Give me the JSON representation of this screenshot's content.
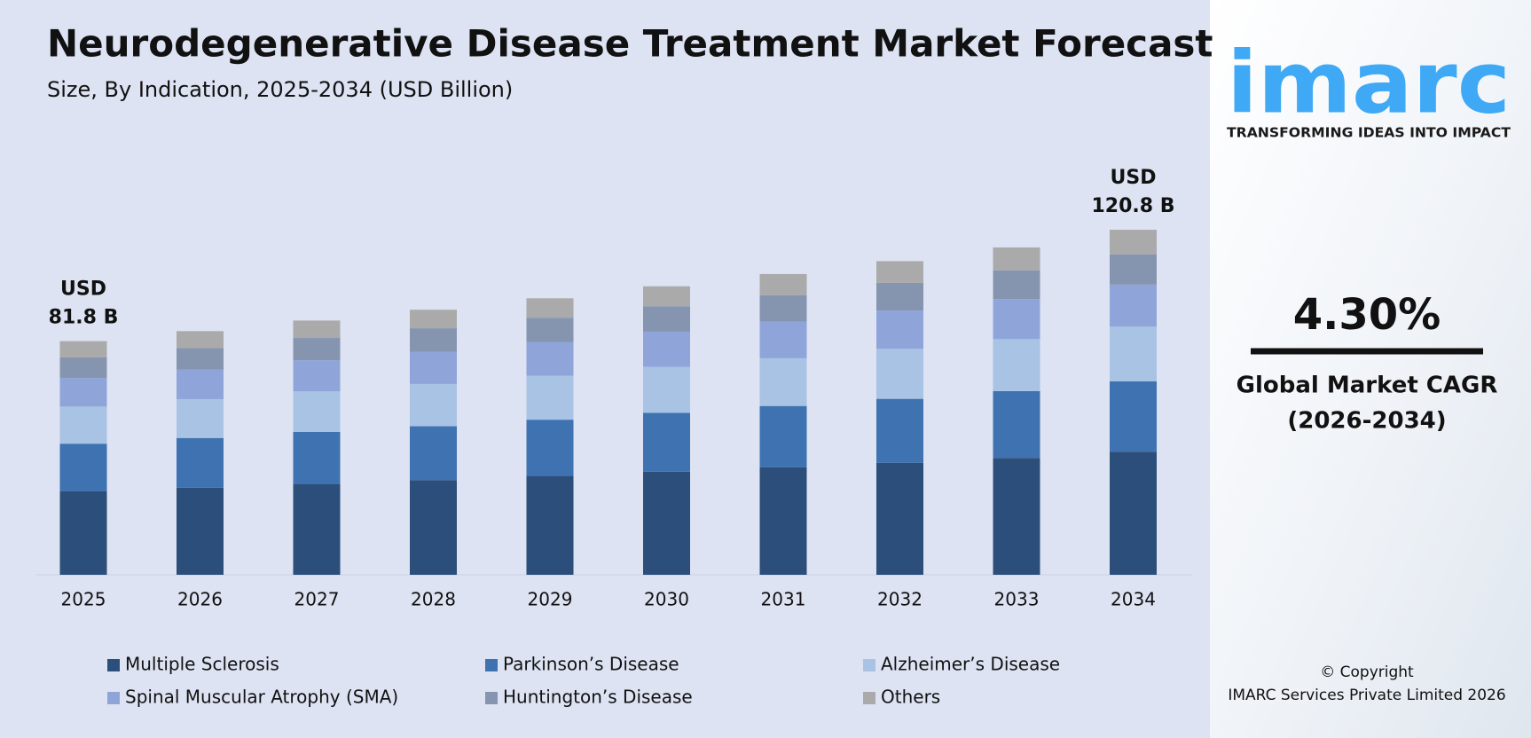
{
  "chart_data": {
    "type": "stacked_bar",
    "title": "Neurodegenerative Disease Treatment Market Forecast",
    "subtitle": "Size, By Indication, 2025-2034 (USD Billion)",
    "categories": [
      "2025",
      "2026",
      "2027",
      "2028",
      "2029",
      "2030",
      "2031",
      "2032",
      "2033",
      "2034"
    ],
    "series": [
      {
        "name": "Multiple Sclerosis",
        "color": "#2c4e7a",
        "values": [
          29.2,
          30.5,
          31.8,
          33.1,
          34.6,
          36.1,
          37.6,
          39.2,
          40.9,
          43.1
        ]
      },
      {
        "name": "Parkinson’s Disease",
        "color": "#3f72b0",
        "values": [
          16.7,
          17.4,
          18.2,
          18.9,
          19.7,
          20.6,
          21.5,
          22.4,
          23.4,
          24.6
        ]
      },
      {
        "name": "Alzheimer’s Disease",
        "color": "#a8c3e4",
        "values": [
          13.0,
          13.6,
          14.2,
          14.8,
          15.4,
          16.1,
          16.7,
          17.5,
          18.2,
          19.2
        ]
      },
      {
        "name": "Spinal Muscular Atrophy (SMA)",
        "color": "#8fa5da",
        "values": [
          10.0,
          10.4,
          10.9,
          11.3,
          11.8,
          12.3,
          12.8,
          13.4,
          14.0,
          14.7
        ]
      },
      {
        "name": "Huntington’s Disease",
        "color": "#8595b0",
        "values": [
          7.2,
          7.5,
          7.8,
          8.2,
          8.5,
          8.9,
          9.3,
          9.7,
          10.1,
          10.6
        ]
      },
      {
        "name": "Others",
        "color": "#aaaaaa",
        "values": [
          5.7,
          5.9,
          6.1,
          6.5,
          6.8,
          7.0,
          7.4,
          7.6,
          8.0,
          8.6
        ]
      }
    ],
    "annotations": [
      {
        "x": "2025",
        "text": [
          "USD",
          "81.8 B"
        ]
      },
      {
        "x": "2034",
        "text": [
          "USD",
          "120.8 B"
        ]
      }
    ]
  },
  "side_panel": {
    "logo": "imarc",
    "tagline": "TRANSFORMING IDEAS INTO IMPACT",
    "cagr": "4.30%",
    "cagr_label": "Global Market CAGR",
    "cagr_period": "(2026-2034)",
    "copyright": "© Copyright",
    "company": "IMARC Services Private Limited 2026"
  }
}
